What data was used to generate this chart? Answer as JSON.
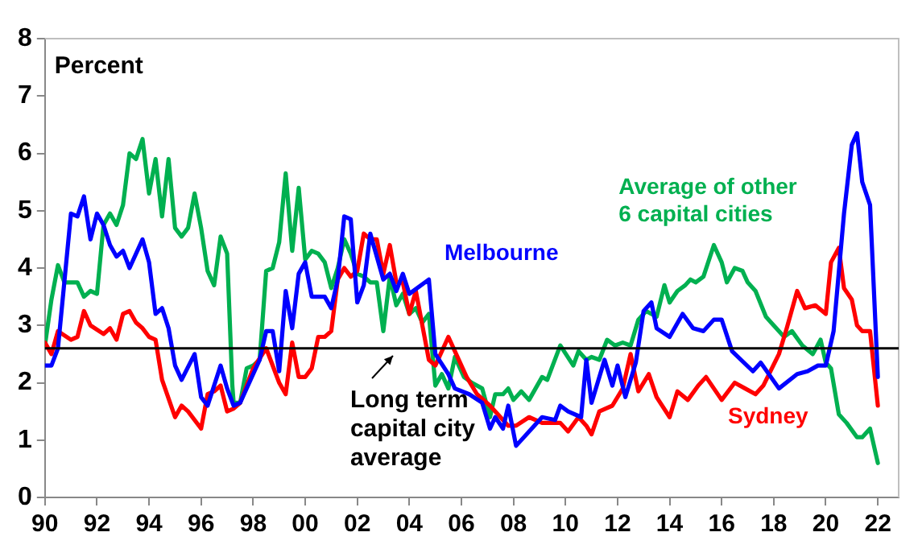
{
  "chart_data": {
    "type": "line",
    "ylabel": "Percent",
    "xlim": [
      1990,
      2022.8
    ],
    "ylim": [
      0,
      8
    ],
    "xticks": [
      {
        "value": 1990,
        "label": "90"
      },
      {
        "value": 1992,
        "label": "92"
      },
      {
        "value": 1994,
        "label": "94"
      },
      {
        "value": 1996,
        "label": "96"
      },
      {
        "value": 1998,
        "label": "98"
      },
      {
        "value": 2000,
        "label": "00"
      },
      {
        "value": 2002,
        "label": "02"
      },
      {
        "value": 2004,
        "label": "04"
      },
      {
        "value": 2006,
        "label": "06"
      },
      {
        "value": 2008,
        "label": "08"
      },
      {
        "value": 2010,
        "label": "10"
      },
      {
        "value": 2012,
        "label": "12"
      },
      {
        "value": 2014,
        "label": "14"
      },
      {
        "value": 2016,
        "label": "16"
      },
      {
        "value": 2018,
        "label": "18"
      },
      {
        "value": 2020,
        "label": "20"
      },
      {
        "value": 2022,
        "label": "22"
      }
    ],
    "yticks": [
      0,
      1,
      2,
      3,
      4,
      5,
      6,
      7,
      8
    ],
    "grid": false,
    "legend": false,
    "marker": "none",
    "line_style": "solid",
    "ref_lines": [
      {
        "axis": "y",
        "value": 2.6,
        "color": "#000000"
      }
    ],
    "annotations": [
      {
        "text": "Long term capital city average",
        "x": 2003.4,
        "y": 2.6
      }
    ],
    "series": [
      {
        "name": "Melbourne",
        "color": "#0000ff",
        "x": [
          1990,
          1990.25,
          1990.5,
          1991,
          1991.25,
          1991.5,
          1991.75,
          1992,
          1992.25,
          1992.5,
          1992.75,
          1993,
          1993.25,
          1993.75,
          1994,
          1994.25,
          1994.5,
          1994.75,
          1995,
          1995.25,
          1995.75,
          1996,
          1996.25,
          1996.75,
          1997,
          1997.25,
          1997.5,
          1998.25,
          1998.5,
          1998.75,
          1999,
          1999.25,
          1999.5,
          1999.75,
          2000,
          2000.25,
          2000.75,
          2001,
          2001.25,
          2001.5,
          2001.75,
          2002,
          2002.25,
          2002.5,
          2003,
          2003.25,
          2003.5,
          2003.75,
          2004,
          2004.75,
          2005,
          2005.5,
          2005.75,
          2006.3,
          2006.8,
          2007.1,
          2007.3,
          2007.6,
          2007.8,
          2008.1,
          2008.8,
          2009.1,
          2009.6,
          2009.8,
          2010.1,
          2010.6,
          2010.8,
          2011,
          2011.5,
          2011.8,
          2012,
          2012.3,
          2012.7,
          2013,
          2013.3,
          2013.5,
          2014,
          2014.5,
          2014.9,
          2015.3,
          2015.7,
          2016,
          2016.4,
          2017.2,
          2017.5,
          2018.2,
          2018.9,
          2019.3,
          2019.7,
          2020,
          2020.3,
          2020.7,
          2021,
          2021.2,
          2021.4,
          2021.7,
          2022
        ],
        "values": [
          2.3,
          2.3,
          2.6,
          4.95,
          4.9,
          5.25,
          4.5,
          4.95,
          4.75,
          4.4,
          4.2,
          4.3,
          4,
          4.5,
          4.1,
          3.2,
          3.3,
          2.95,
          2.3,
          2.05,
          2.5,
          1.75,
          1.6,
          2.3,
          1.9,
          1.6,
          1.65,
          2.4,
          2.9,
          2.9,
          2.2,
          3.6,
          2.95,
          3.9,
          4.1,
          3.5,
          3.5,
          3.3,
          3.8,
          4.9,
          4.85,
          3.4,
          3.7,
          4.6,
          3.8,
          3.9,
          3.6,
          3.9,
          3.55,
          3.8,
          2.5,
          2.15,
          1.9,
          1.8,
          1.65,
          1.2,
          1.4,
          1.2,
          1.6,
          0.9,
          1.25,
          1.4,
          1.35,
          1.6,
          1.5,
          1.4,
          2.4,
          1.65,
          2.4,
          1.95,
          2.3,
          1.75,
          2.35,
          3.25,
          3.4,
          2.95,
          2.8,
          3.2,
          2.95,
          2.9,
          3.1,
          3.1,
          2.55,
          2.2,
          2.35,
          1.9,
          2.15,
          2.2,
          2.3,
          2.3,
          2.9,
          4.95,
          6.15,
          6.35,
          5.5,
          5.1,
          2.1
        ]
      },
      {
        "name": "Sydney",
        "color": "#ff0000",
        "x": [
          1990,
          1990.25,
          1990.5,
          1991,
          1991.25,
          1991.5,
          1991.75,
          1992.25,
          1992.5,
          1992.75,
          1993,
          1993.25,
          1993.5,
          1993.75,
          1994,
          1994.25,
          1994.5,
          1995,
          1995.25,
          1995.5,
          1996,
          1996.25,
          1996.5,
          1996.75,
          1997,
          1997.25,
          1997.5,
          1998,
          1998.5,
          1999,
          1999.25,
          1999.5,
          1999.75,
          2000,
          2000.25,
          2000.5,
          2000.75,
          2001,
          2001.25,
          2001.5,
          2001.75,
          2002,
          2002.25,
          2002.5,
          2002.75,
          2003,
          2003.25,
          2003.5,
          2003.75,
          2004,
          2004.25,
          2004.5,
          2004.75,
          2005,
          2005.5,
          2005.8,
          2006.2,
          2006.6,
          2007.1,
          2007.5,
          2007.8,
          2008.1,
          2008.6,
          2009.1,
          2009.8,
          2010.1,
          2010.5,
          2010.8,
          2011,
          2011.3,
          2011.8,
          2012.2,
          2012.5,
          2012.8,
          2013.2,
          2013.5,
          2014,
          2014.3,
          2014.7,
          2015.1,
          2015.4,
          2015.7,
          2016,
          2016.5,
          2016.9,
          2017.3,
          2017.6,
          2018.2,
          2018.5,
          2018.9,
          2019.2,
          2019.6,
          2020,
          2020.2,
          2020.5,
          2020.7,
          2021,
          2021.2,
          2021.4,
          2021.7,
          2022
        ],
        "values": [
          2.7,
          2.5,
          2.9,
          2.75,
          2.8,
          3.25,
          3,
          2.85,
          2.95,
          2.75,
          3.2,
          3.25,
          3.05,
          2.95,
          2.8,
          2.75,
          2.05,
          1.4,
          1.6,
          1.5,
          1.2,
          1.8,
          1.85,
          1.95,
          1.5,
          1.55,
          1.65,
          2.25,
          2.6,
          2,
          1.8,
          2.7,
          2.1,
          2.1,
          2.25,
          2.8,
          2.8,
          2.9,
          3.8,
          4,
          3.85,
          3.95,
          4.6,
          4.5,
          4.5,
          3.9,
          4.4,
          3.75,
          3.75,
          3.2,
          3.6,
          3,
          2.4,
          2.3,
          2.8,
          2.5,
          2.1,
          1.8,
          1.6,
          1.4,
          1.25,
          1.25,
          1.4,
          1.3,
          1.3,
          1.15,
          1.4,
          1.25,
          1.1,
          1.5,
          1.6,
          1.9,
          2.5,
          1.85,
          2.15,
          1.75,
          1.4,
          1.85,
          1.7,
          1.95,
          2.1,
          1.9,
          1.7,
          2,
          1.9,
          1.8,
          1.95,
          2.5,
          2.95,
          3.6,
          3.3,
          3.35,
          3.2,
          4.1,
          4.35,
          3.65,
          3.45,
          3,
          2.9,
          2.9,
          1.6
        ]
      },
      {
        "name": "Average of other 6 capital cities",
        "color": "#00b050",
        "x": [
          1990,
          1990.25,
          1990.5,
          1990.75,
          1991.25,
          1991.5,
          1991.75,
          1992,
          1992.25,
          1992.5,
          1992.75,
          1993,
          1993.25,
          1993.5,
          1993.75,
          1994,
          1994.25,
          1994.5,
          1994.75,
          1995,
          1995.25,
          1995.5,
          1995.75,
          1996,
          1996.25,
          1996.5,
          1996.75,
          1997,
          1997.2,
          1997.25,
          1997.5,
          1997.75,
          1998,
          1998.25,
          1998.5,
          1998.75,
          1999,
          1999.25,
          1999.5,
          1999.75,
          2000,
          2000.25,
          2000.5,
          2000.75,
          2001,
          2001.25,
          2001.5,
          2001.75,
          2002,
          2002.25,
          2002.5,
          2002.75,
          2003,
          2003.25,
          2003.5,
          2003.75,
          2004,
          2004.25,
          2004.5,
          2004.75,
          2005,
          2005.25,
          2005.5,
          2005.75,
          2006.1,
          2006.4,
          2006.8,
          2007.1,
          2007.3,
          2007.6,
          2007.8,
          2008,
          2008.3,
          2008.6,
          2009.1,
          2009.3,
          2009.8,
          2010.3,
          2010.5,
          2010.8,
          2011,
          2011.3,
          2011.6,
          2011.9,
          2012.2,
          2012.5,
          2012.8,
          2013.1,
          2013.5,
          2013.8,
          2014,
          2014.3,
          2014.6,
          2014.8,
          2015,
          2015.3,
          2015.7,
          2016,
          2016.2,
          2016.5,
          2016.8,
          2017,
          2017.3,
          2017.7,
          2017.9,
          2018.4,
          2018.7,
          2019.1,
          2019.5,
          2019.8,
          2020,
          2020.2,
          2020.5,
          2020.8,
          2021.2,
          2021.4,
          2021.7,
          2022
        ],
        "values": [
          2.65,
          3.45,
          4.05,
          3.75,
          3.75,
          3.5,
          3.6,
          3.55,
          4.75,
          4.95,
          4.75,
          5.1,
          6,
          5.9,
          6.25,
          5.3,
          5.9,
          4.9,
          5.9,
          4.7,
          4.55,
          4.7,
          5.3,
          4.7,
          3.95,
          3.7,
          4.55,
          4.25,
          1.95,
          1.65,
          1.65,
          2.25,
          2.3,
          2.4,
          3.95,
          4,
          4.45,
          5.65,
          4.3,
          5.4,
          4.15,
          4.3,
          4.25,
          4.1,
          3.65,
          4,
          4.5,
          4.25,
          3.9,
          3.85,
          3.75,
          3.75,
          2.9,
          3.85,
          3.35,
          3.55,
          3.2,
          3.3,
          3.05,
          3.2,
          1.95,
          2.15,
          1.9,
          2.45,
          2.1,
          2,
          1.9,
          1.4,
          1.8,
          1.8,
          1.9,
          1.7,
          1.85,
          1.7,
          2.1,
          2.05,
          2.65,
          2.3,
          2.55,
          2.4,
          2.45,
          2.4,
          2.75,
          2.65,
          2.7,
          2.65,
          3.1,
          3.25,
          3.15,
          3.7,
          3.4,
          3.6,
          3.7,
          3.8,
          3.75,
          3.85,
          4.4,
          4.1,
          3.75,
          4,
          3.95,
          3.75,
          3.6,
          3.15,
          3.05,
          2.8,
          2.9,
          2.65,
          2.5,
          2.75,
          2.35,
          2.25,
          1.45,
          1.3,
          1.05,
          1.05,
          1.2,
          0.6
        ]
      }
    ]
  }
}
